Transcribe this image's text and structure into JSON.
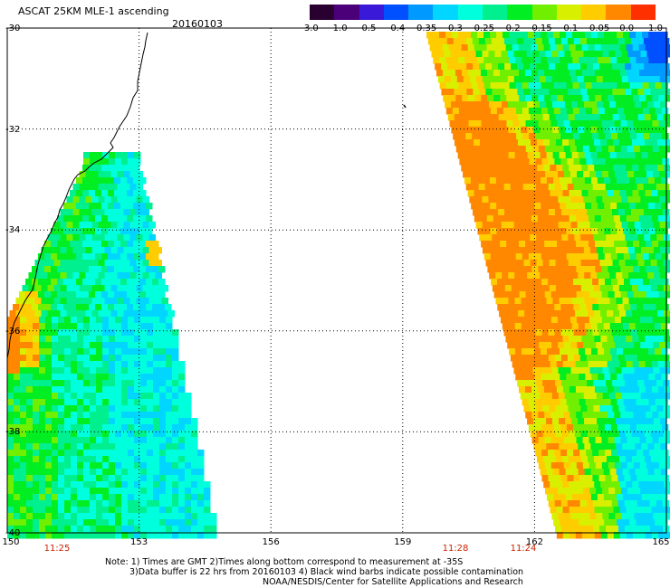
{
  "header": {
    "title": "ASCAT 25KM MLE-1 ascending",
    "date": "20160103"
  },
  "colorbar": {
    "labels": [
      "-3.0",
      "-1.0",
      "-0.5",
      "-0.4",
      "-0.35",
      "-0.3",
      "-0.25",
      "-0.2",
      "-0.15",
      "-0.1",
      "-0.05",
      "0.0",
      "1.0"
    ],
    "colors": [
      "#2a0030",
      "#4b007a",
      "#3a1ad8",
      "#0050ff",
      "#0099ff",
      "#00d6ff",
      "#00ffdc",
      "#00f090",
      "#00ee22",
      "#70f000",
      "#d8f000",
      "#ffcc00",
      "#ff8800",
      "#ff3000"
    ]
  },
  "map": {
    "lat_labels": [
      "-30",
      "-32",
      "-34",
      "-36",
      "-38",
      "-40"
    ],
    "lon_labels": [
      "150",
      "153",
      "156",
      "159",
      "162",
      "165"
    ],
    "lon_range": [
      150,
      165
    ],
    "lat_range": [
      -30,
      -40
    ]
  },
  "time_labels": [
    "11:25",
    "11:28",
    "11:24"
  ],
  "notes": {
    "line1": "Note: 1) Times are GMT 2)Times along bottom correspond to measurement at -35S",
    "line2": "3)Data buffer is 22 hrs from 20160103 4) Black wind barbs indicate possible contamination",
    "line3": "NOAA/NESDIS/Center for Satellite Applications and Research"
  }
}
